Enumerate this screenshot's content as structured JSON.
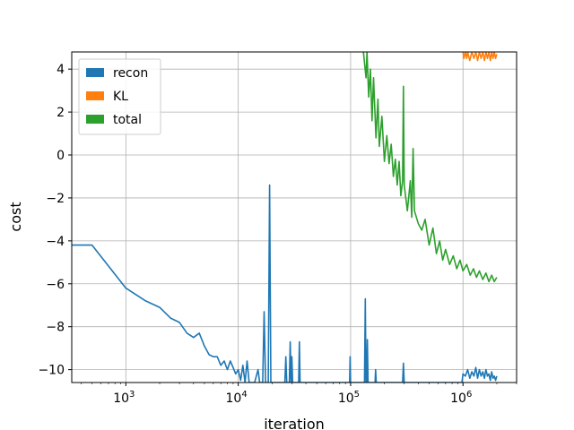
{
  "chart_data": {
    "type": "line",
    "xlabel": "iteration",
    "ylabel": "cost",
    "xscale": "log",
    "xlim": [
      330,
      3000000
    ],
    "ylim": [
      -10.6,
      4.8
    ],
    "grid": true,
    "legend_position": "top-left",
    "x_ticks": [
      {
        "value": 1000,
        "base": "10",
        "exp": "3"
      },
      {
        "value": 10000,
        "base": "10",
        "exp": "4"
      },
      {
        "value": 100000,
        "base": "10",
        "exp": "5"
      },
      {
        "value": 1000000,
        "base": "10",
        "exp": "6"
      }
    ],
    "y_ticks": [
      {
        "value": 4,
        "label": "4"
      },
      {
        "value": 2,
        "label": "2"
      },
      {
        "value": 0,
        "label": "0"
      },
      {
        "value": -2,
        "label": "−2"
      },
      {
        "value": -4,
        "label": "−4"
      },
      {
        "value": -6,
        "label": "−6"
      },
      {
        "value": -8,
        "label": "−8"
      },
      {
        "value": -10,
        "label": "−10"
      }
    ],
    "series": [
      {
        "name": "recon",
        "color": "#1f77b4",
        "points": [
          [
            300,
            -4.2
          ],
          [
            500,
            -4.2
          ],
          [
            1000,
            -6.2
          ],
          [
            1500,
            -6.8
          ],
          [
            2000,
            -7.1
          ],
          [
            2500,
            -7.6
          ],
          [
            3000,
            -7.8
          ],
          [
            3500,
            -8.3
          ],
          [
            4000,
            -8.5
          ],
          [
            4500,
            -8.3
          ],
          [
            5000,
            -8.9
          ],
          [
            5500,
            -9.3
          ],
          [
            6000,
            -9.4
          ],
          [
            6500,
            -9.4
          ],
          [
            7000,
            -9.8
          ],
          [
            7500,
            -9.6
          ],
          [
            8000,
            -10.0
          ],
          [
            8500,
            -9.6
          ],
          [
            9000,
            -9.9
          ],
          [
            9500,
            -10.2
          ],
          [
            10000,
            -10.0
          ],
          [
            10500,
            -10.5
          ],
          [
            11000,
            -9.8
          ],
          [
            11500,
            -10.6
          ],
          [
            12000,
            -9.6
          ],
          [
            12500,
            -10.6
          ],
          [
            14000,
            -10.6
          ],
          [
            15000,
            -10.0
          ],
          [
            15500,
            -10.6
          ],
          [
            16500,
            -10.6
          ],
          [
            17000,
            -7.3
          ],
          [
            17500,
            -10.6
          ],
          [
            18500,
            -10.6
          ],
          [
            19000,
            -1.4
          ],
          [
            19500,
            -10.6
          ],
          [
            26000,
            -10.6
          ],
          [
            26500,
            -9.4
          ],
          [
            27000,
            -10.6
          ],
          [
            28500,
            -10.6
          ],
          [
            29000,
            -8.7
          ],
          [
            29500,
            -10.6
          ],
          [
            30000,
            -9.4
          ],
          [
            30500,
            -10.6
          ],
          [
            34500,
            -10.6
          ],
          [
            35000,
            -8.7
          ],
          [
            35500,
            -10.6
          ],
          [
            98000,
            -10.6
          ],
          [
            99000,
            -9.4
          ],
          [
            100000,
            -10.6
          ],
          [
            133000,
            -10.6
          ],
          [
            135000,
            -6.7
          ],
          [
            137000,
            -10.6
          ],
          [
            139000,
            -10.6
          ],
          [
            141000,
            -8.6
          ],
          [
            143000,
            -10.6
          ],
          [
            165000,
            -10.6
          ],
          [
            167000,
            -10.0
          ],
          [
            169000,
            -10.6
          ],
          [
            290000,
            -10.6
          ],
          [
            295000,
            -9.7
          ],
          [
            300000,
            -10.6
          ],
          [
            980000,
            -10.6
          ],
          [
            1000000,
            -10.2
          ],
          [
            1050000,
            -10.3
          ],
          [
            1100000,
            -10.0
          ],
          [
            1150000,
            -10.4
          ],
          [
            1200000,
            -10.1
          ],
          [
            1250000,
            -10.3
          ],
          [
            1300000,
            -9.9
          ],
          [
            1350000,
            -10.4
          ],
          [
            1400000,
            -10.0
          ],
          [
            1450000,
            -10.3
          ],
          [
            1500000,
            -10.1
          ],
          [
            1550000,
            -10.4
          ],
          [
            1600000,
            -10.0
          ],
          [
            1650000,
            -10.3
          ],
          [
            1700000,
            -10.2
          ],
          [
            1750000,
            -10.5
          ],
          [
            1800000,
            -10.1
          ],
          [
            1850000,
            -10.4
          ],
          [
            1900000,
            -10.3
          ],
          [
            1950000,
            -10.5
          ],
          [
            2000000,
            -10.3
          ]
        ]
      },
      {
        "name": "KL",
        "color": "#ff7f0e",
        "points": [
          [
            1000000,
            4.8
          ],
          [
            1020000,
            4.5
          ],
          [
            1050000,
            4.8
          ],
          [
            1080000,
            4.5
          ],
          [
            1100000,
            4.8
          ],
          [
            1150000,
            4.4
          ],
          [
            1200000,
            4.8
          ],
          [
            1250000,
            4.5
          ],
          [
            1300000,
            4.8
          ],
          [
            1350000,
            4.4
          ],
          [
            1400000,
            4.8
          ],
          [
            1450000,
            4.5
          ],
          [
            1500000,
            4.8
          ],
          [
            1550000,
            4.4
          ],
          [
            1600000,
            4.8
          ],
          [
            1650000,
            4.5
          ],
          [
            1700000,
            4.8
          ],
          [
            1750000,
            4.4
          ],
          [
            1800000,
            4.8
          ],
          [
            1850000,
            4.5
          ],
          [
            1900000,
            4.8
          ],
          [
            1950000,
            4.5
          ],
          [
            2000000,
            4.7
          ]
        ]
      },
      {
        "name": "total",
        "color": "#2ca02c",
        "points": [
          [
            130000,
            4.8
          ],
          [
            137000,
            3.6
          ],
          [
            140000,
            4.8
          ],
          [
            145000,
            2.7
          ],
          [
            150000,
            4.0
          ],
          [
            155000,
            1.6
          ],
          [
            160000,
            3.6
          ],
          [
            168000,
            0.8
          ],
          [
            175000,
            2.6
          ],
          [
            180000,
            0.4
          ],
          [
            190000,
            1.8
          ],
          [
            200000,
            -0.3
          ],
          [
            210000,
            0.9
          ],
          [
            220000,
            -0.4
          ],
          [
            230000,
            0.5
          ],
          [
            240000,
            -1.0
          ],
          [
            250000,
            -0.2
          ],
          [
            260000,
            -1.4
          ],
          [
            270000,
            -0.3
          ],
          [
            280000,
            -1.9
          ],
          [
            290000,
            -1.2
          ],
          [
            295000,
            3.2
          ],
          [
            300000,
            -1.4
          ],
          [
            320000,
            -2.6
          ],
          [
            340000,
            -1.2
          ],
          [
            350000,
            -2.9
          ],
          [
            360000,
            0.3
          ],
          [
            370000,
            -2.6
          ],
          [
            400000,
            -3.2
          ],
          [
            430000,
            -3.5
          ],
          [
            460000,
            -3.0
          ],
          [
            500000,
            -4.2
          ],
          [
            540000,
            -3.4
          ],
          [
            580000,
            -4.6
          ],
          [
            620000,
            -4.0
          ],
          [
            660000,
            -4.9
          ],
          [
            700000,
            -4.4
          ],
          [
            760000,
            -5.1
          ],
          [
            820000,
            -4.7
          ],
          [
            880000,
            -5.3
          ],
          [
            940000,
            -4.9
          ],
          [
            1000000,
            -5.4
          ],
          [
            1080000,
            -5.1
          ],
          [
            1160000,
            -5.6
          ],
          [
            1240000,
            -5.3
          ],
          [
            1320000,
            -5.7
          ],
          [
            1400000,
            -5.4
          ],
          [
            1500000,
            -5.8
          ],
          [
            1600000,
            -5.5
          ],
          [
            1700000,
            -5.9
          ],
          [
            1800000,
            -5.6
          ],
          [
            1900000,
            -5.9
          ],
          [
            2000000,
            -5.7
          ]
        ]
      }
    ]
  }
}
